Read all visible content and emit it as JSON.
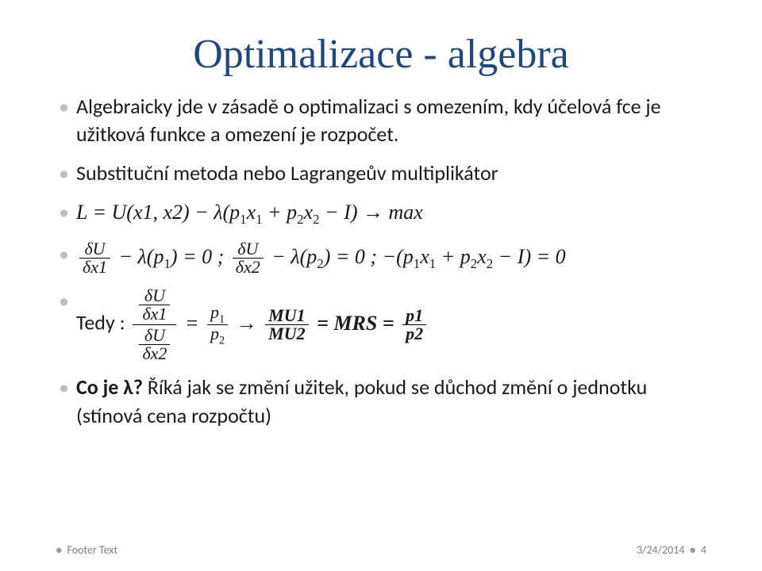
{
  "title_color": "#1f497d",
  "title": "Optimalizace - algebra",
  "bullets": {
    "b1": "Algebraicky jde v zásadě o optimalizaci s omezením, kdy účelová fce je užitková funkce a omezení je rozpočet.",
    "b2": "Substituční metoda nebo Lagrangeův multiplikátor",
    "b3_pre": "L = U(x1, x2) − λ(p",
    "b3_x1": "x",
    "b3_plus": " + p",
    "b3_x2": "x",
    "b3_post": " − I) → max",
    "b4_dU": "δU",
    "b4_dx1": "δx1",
    "b4_mid1": " − λ(p",
    "b4_mid2": ") = 0 ; ",
    "b4_dx2": "δx2",
    "b4_mid3": " − λ(p",
    "b4_mid4": ") = 0 ; −(p",
    "b4_mid5": " + p",
    "b4_end": " − I) = 0",
    "tedy": "Tedy : ",
    "p1": "p",
    "p2": "p",
    "arrow": " → ",
    "MU1": "MU1",
    "MU2": "MU2",
    "eqMRS": " = MRS = ",
    "p1b": "p1",
    "p2b": "p2",
    "co": "Co je λ?",
    "co_rest": " Říká jak se změní užitek, pokud se důchod změní o jednotku (stínová cena rozpočtu)"
  },
  "footer": {
    "left": "Footer Text",
    "date": "3/24/2014",
    "page": "4"
  }
}
